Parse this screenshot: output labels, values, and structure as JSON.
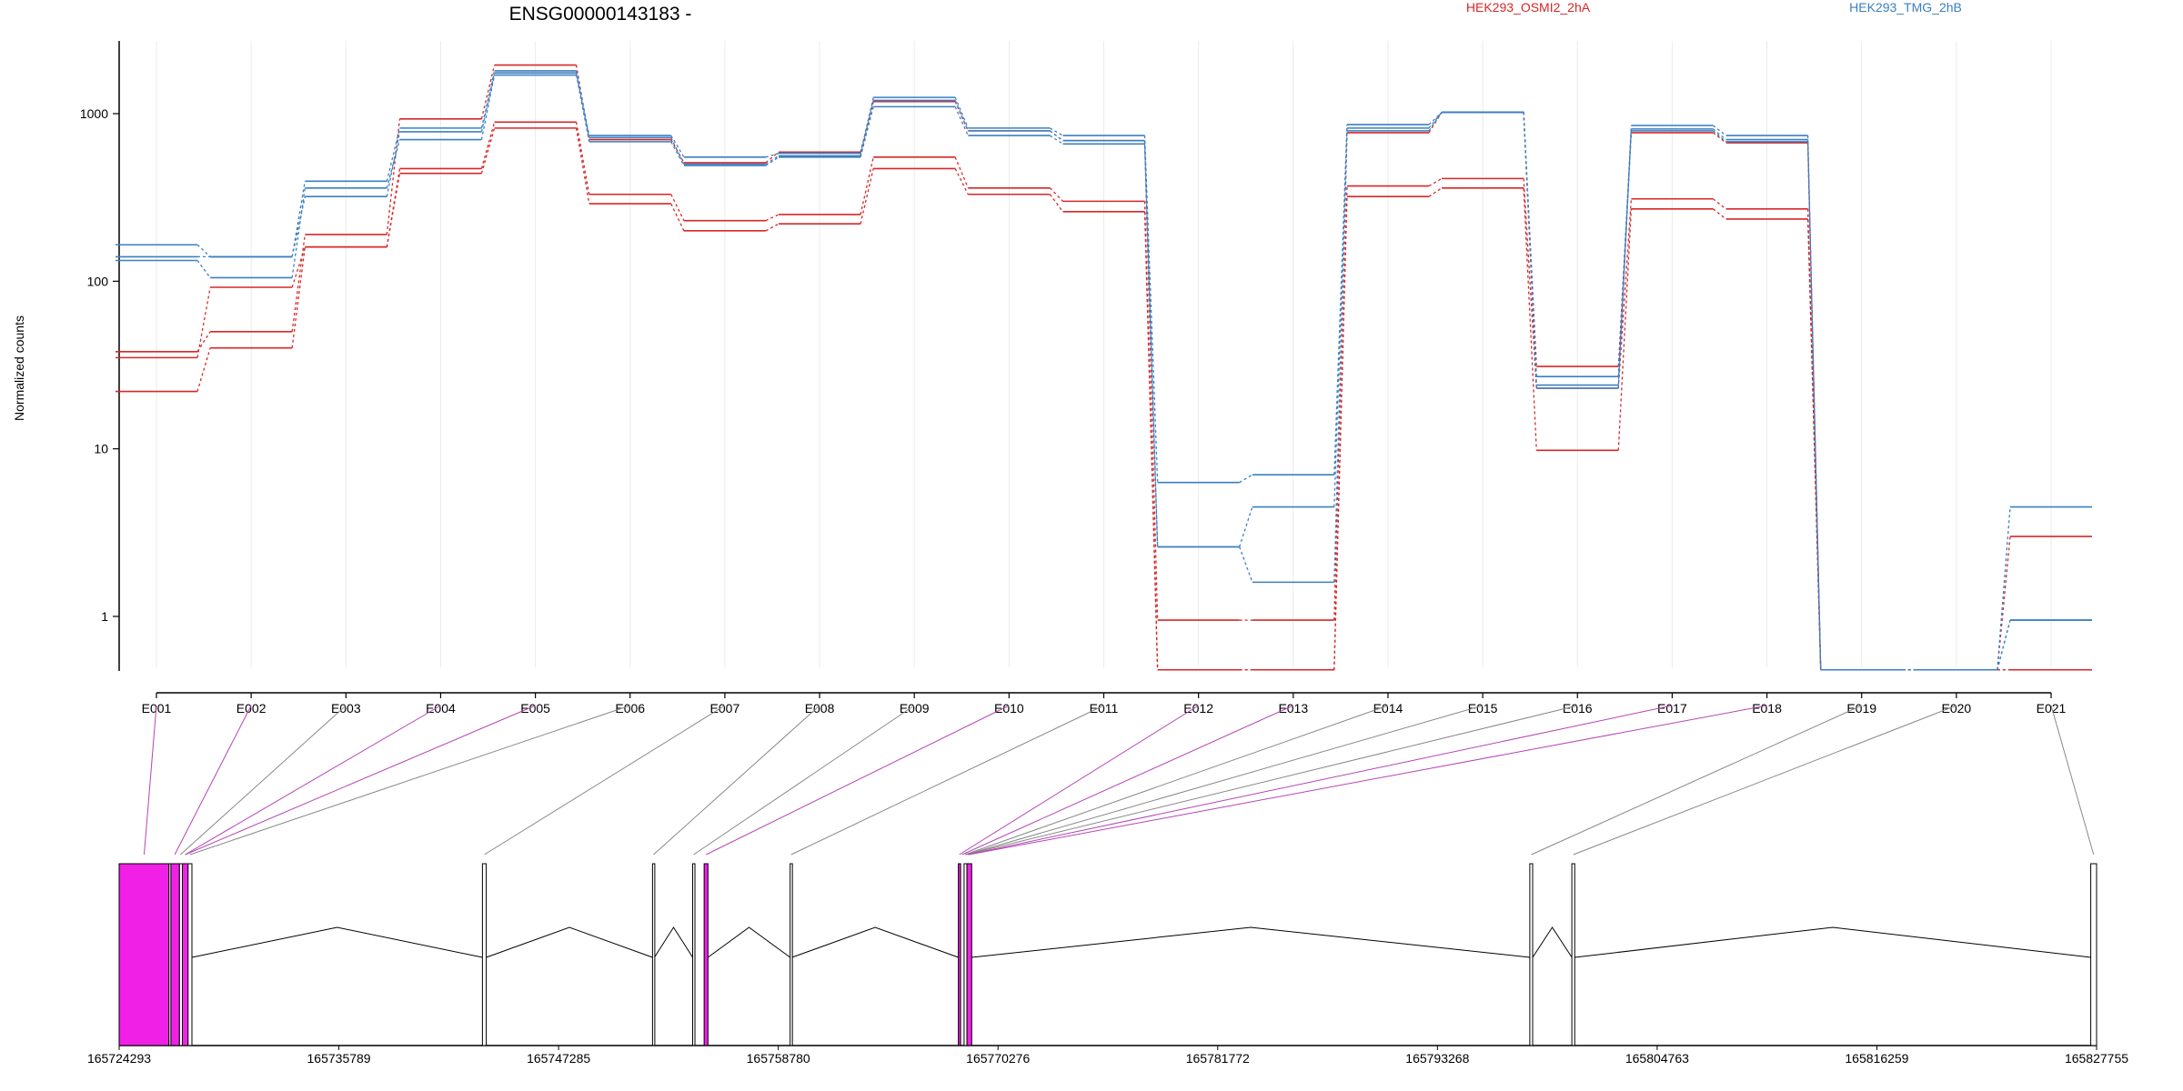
{
  "chart_data": {
    "type": "line",
    "title": "ENSG00000143183 -",
    "ylabel": "Normalized counts",
    "y_scale": "log",
    "ylim": [
      0.4,
      2600
    ],
    "y_ticks": [
      {
        "value": 1,
        "label": "1"
      },
      {
        "value": 10,
        "label": "10"
      },
      {
        "value": 100,
        "label": "100"
      },
      {
        "value": 1000,
        "label": "1000"
      }
    ],
    "grid": "vertical",
    "legend": [
      {
        "name": "HEK293_OSMI2_2hA",
        "color": "#d62728"
      },
      {
        "name": "HEK293_TMG_2hB",
        "color": "#3a7fc1"
      }
    ],
    "categories": [
      "E001",
      "E002",
      "E003",
      "E004",
      "E005",
      "E006",
      "E007",
      "E008",
      "E009",
      "E010",
      "E011",
      "E012",
      "E013",
      "E014",
      "E015",
      "E016",
      "E017",
      "E018",
      "E019",
      "E020",
      "E021"
    ],
    "series": [
      {
        "group": "HEK293_OSMI2_2hA",
        "color": "#d62728",
        "values": [
          38,
          50,
          190,
          930,
          1950,
          700,
          510,
          590,
          1180,
          790,
          690,
          0.95,
          0.95,
          770,
          1020,
          31,
          770,
          670,
          0.48,
          0.48,
          3
        ]
      },
      {
        "group": "HEK293_OSMI2_2hA",
        "color": "#d62728",
        "values": [
          35,
          92,
          160,
          470,
          890,
          330,
          230,
          250,
          550,
          360,
          300,
          0.48,
          0.48,
          370,
          410,
          23,
          310,
          270,
          0.48,
          0.48,
          0.48
        ]
      },
      {
        "group": "HEK293_OSMI2_2hA",
        "color": "#d62728",
        "values": [
          22,
          40,
          160,
          440,
          820,
          290,
          200,
          220,
          470,
          330,
          260,
          0.48,
          0.48,
          320,
          360,
          9.8,
          270,
          235,
          0.48,
          0.48,
          0.48
        ]
      },
      {
        "group": "HEK293_TMG_2hB",
        "color": "#3a7fc1",
        "values": [
          165,
          140,
          395,
          820,
          1800,
          740,
          550,
          580,
          1250,
          820,
          740,
          6.3,
          7,
          860,
          1020,
          27,
          850,
          740,
          0.48,
          0.48,
          4.5
        ]
      },
      {
        "group": "HEK293_TMG_2hB",
        "color": "#3a7fc1",
        "values": [
          140,
          140,
          320,
          780,
          1750,
          720,
          500,
          560,
          1200,
          790,
          690,
          2.6,
          4.5,
          820,
          1020,
          24,
          810,
          700,
          0.48,
          0.48,
          0.95
        ]
      },
      {
        "group": "HEK293_TMG_2hB",
        "color": "#3a7fc1",
        "values": [
          133,
          105,
          360,
          700,
          1700,
          680,
          490,
          550,
          1100,
          740,
          660,
          2.6,
          1.6,
          790,
          1020,
          23,
          790,
          680,
          0.48,
          0.48,
          0.95
        ]
      }
    ],
    "genome_track": {
      "xlim": [
        165724293,
        165827755
      ],
      "tick_labels": [
        "165724293",
        "165735789",
        "165747285",
        "165758780",
        "165770276",
        "165781772",
        "165793268",
        "165804763",
        "165816259",
        "165827755"
      ],
      "exon_color": "#f020e6",
      "exons": [
        {
          "start": 165724293,
          "end": 165726900,
          "highlight": true
        },
        {
          "start": 165726900,
          "end": 165727000,
          "highlight": false
        },
        {
          "start": 165727000,
          "end": 165727450,
          "highlight": true
        },
        {
          "start": 165727450,
          "end": 165727600,
          "highlight": false
        },
        {
          "start": 165727600,
          "end": 165727900,
          "highlight": true
        },
        {
          "start": 165727900,
          "end": 165728100,
          "highlight": false
        },
        {
          "start": 165743300,
          "end": 165743500,
          "highlight": false
        },
        {
          "start": 165752200,
          "end": 165752300,
          "highlight": false
        },
        {
          "start": 165754300,
          "end": 165754400,
          "highlight": false
        },
        {
          "start": 165754900,
          "end": 165755100,
          "highlight": true
        },
        {
          "start": 165759400,
          "end": 165759500,
          "highlight": false
        },
        {
          "start": 165768200,
          "end": 165768300,
          "highlight": true
        },
        {
          "start": 165768500,
          "end": 165768650,
          "highlight": false
        },
        {
          "start": 165768650,
          "end": 165768900,
          "highlight": true
        },
        {
          "start": 165798100,
          "end": 165798250,
          "highlight": false
        },
        {
          "start": 165800300,
          "end": 165800450,
          "highlight": false
        },
        {
          "start": 165827450,
          "end": 165827755,
          "highlight": false
        }
      ],
      "introns": [
        [
          165728100,
          165743300
        ],
        [
          165743500,
          165752200
        ],
        [
          165752300,
          165754300
        ],
        [
          165755100,
          165759400
        ],
        [
          165759500,
          165768200
        ],
        [
          165768900,
          165798100
        ],
        [
          165798250,
          165800300
        ],
        [
          165800450,
          165827450
        ]
      ],
      "links": [
        {
          "bin": "E001",
          "pos": 165725600,
          "highlight": true
        },
        {
          "bin": "E002",
          "pos": 165727200,
          "highlight": true
        },
        {
          "bin": "E003",
          "pos": 165727500,
          "highlight": false
        },
        {
          "bin": "E004",
          "pos": 165727750,
          "highlight": true
        },
        {
          "bin": "E005",
          "pos": 165727750,
          "highlight": true
        },
        {
          "bin": "E006",
          "pos": 165728000,
          "highlight": false
        },
        {
          "bin": "E007",
          "pos": 165743400,
          "highlight": false
        },
        {
          "bin": "E008",
          "pos": 165752250,
          "highlight": false
        },
        {
          "bin": "E009",
          "pos": 165754350,
          "highlight": false
        },
        {
          "bin": "E010",
          "pos": 165755000,
          "highlight": true
        },
        {
          "bin": "E011",
          "pos": 165759450,
          "highlight": false
        },
        {
          "bin": "E012",
          "pos": 165768250,
          "highlight": true
        },
        {
          "bin": "E013",
          "pos": 165768400,
          "highlight": true
        },
        {
          "bin": "E014",
          "pos": 165768550,
          "highlight": false
        },
        {
          "bin": "E015",
          "pos": 165768600,
          "highlight": false
        },
        {
          "bin": "E016",
          "pos": 165768600,
          "highlight": false
        },
        {
          "bin": "E017",
          "pos": 165768700,
          "highlight": true
        },
        {
          "bin": "E018",
          "pos": 165768750,
          "highlight": true
        },
        {
          "bin": "E019",
          "pos": 165798180,
          "highlight": false
        },
        {
          "bin": "E020",
          "pos": 165800380,
          "highlight": false
        },
        {
          "bin": "E021",
          "pos": 165827600,
          "highlight": false
        }
      ]
    }
  }
}
